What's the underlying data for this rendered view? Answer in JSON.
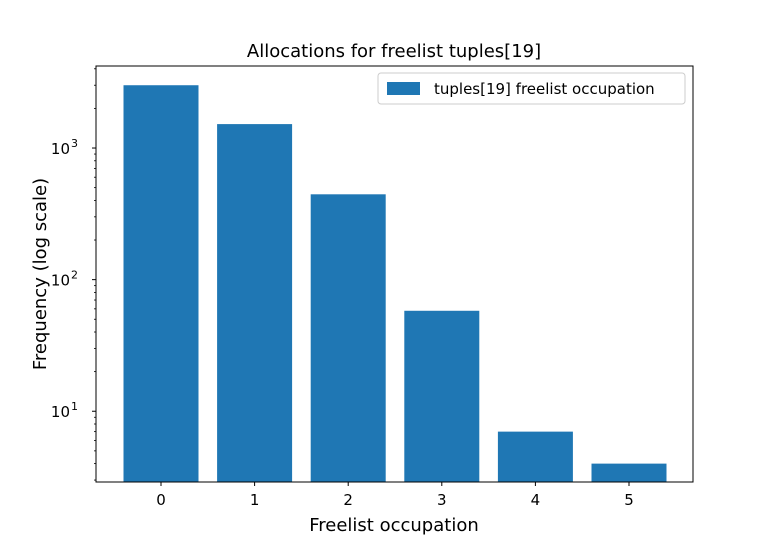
{
  "chart_data": {
    "type": "bar",
    "title": "Allocations for freelist tuples[19]",
    "xlabel": "Freelist occupation",
    "ylabel": "Frequency (log scale)",
    "categories": [
      "0",
      "1",
      "2",
      "3",
      "4",
      "5"
    ],
    "series": [
      {
        "name": "tuples[19] freelist occupation",
        "values": [
          3000,
          1520,
          445,
          58,
          7,
          4
        ],
        "color": "#1f77b4"
      }
    ],
    "yscale": "log",
    "ylim": [
      2.9,
      4200
    ],
    "y_ticks": [
      {
        "value": 10,
        "base": "10",
        "exp": "1"
      },
      {
        "value": 100,
        "base": "10",
        "exp": "2"
      },
      {
        "value": 1000,
        "base": "10",
        "exp": "3"
      }
    ],
    "grid": false,
    "legend_position": "top-right"
  }
}
